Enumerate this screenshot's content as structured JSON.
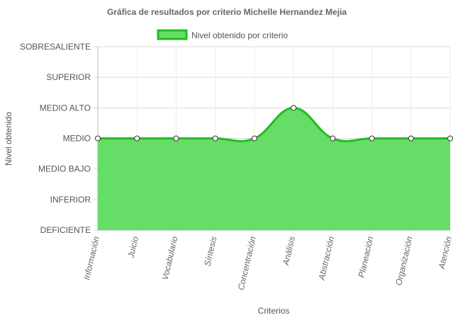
{
  "chart_data": {
    "type": "area",
    "title": "Gráfica de resultados por criterio Michelle Hernandez Mejia",
    "xlabel": "Criterios",
    "ylabel": "Nivel obtenido",
    "legend_position": "top",
    "grid": true,
    "categories": [
      "Información",
      "Juicio",
      "Vocabulario",
      "Síntesis",
      "Concentración",
      "Análisis",
      "Abstracción",
      "Planeación",
      "Organización",
      "Atención"
    ],
    "y_levels": [
      "DEFICIENTE",
      "INFERIOR",
      "MEDIO BAJO",
      "MEDIO",
      "MEDIO ALTO",
      "SUPERIOR",
      "SOBRESALIENTE"
    ],
    "ylim": [
      0,
      6
    ],
    "series": [
      {
        "name": "Nivel obtenido por criterio",
        "values": [
          3,
          3,
          3,
          3,
          3,
          4,
          3,
          3,
          3,
          3
        ],
        "fill_color": "#66dd66",
        "line_color": "#22bb22"
      }
    ]
  }
}
